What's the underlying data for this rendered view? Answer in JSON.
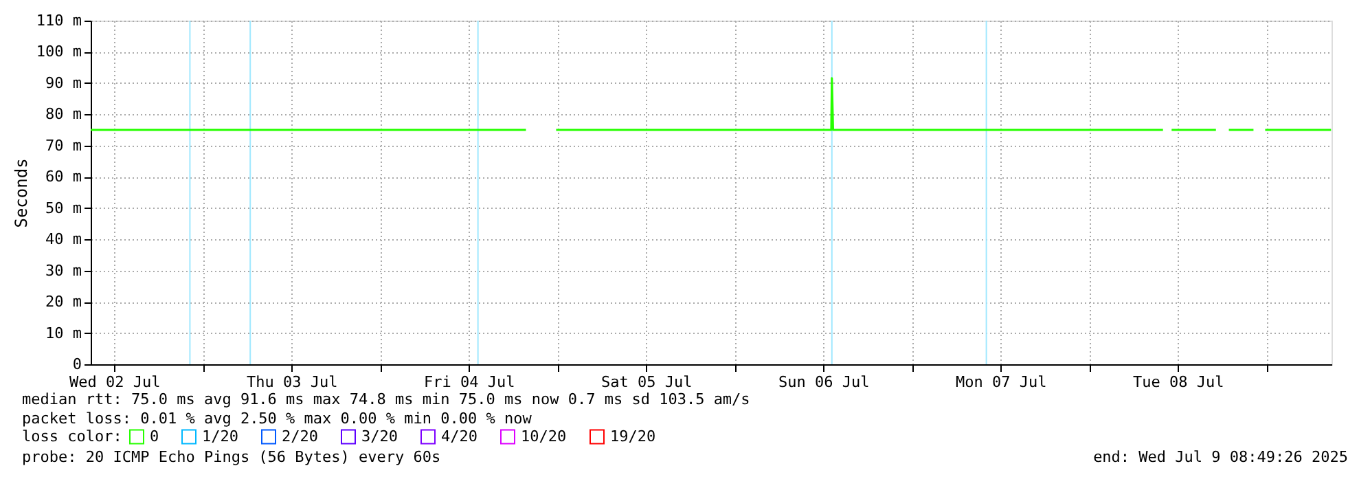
{
  "chart_data": {
    "type": "line",
    "ylabel": "Seconds",
    "legend_title": "loss color:",
    "legend": "bottom",
    "grid": true,
    "xlim": [
      "2025-07-02T08:49",
      "2025-07-09T08:49"
    ],
    "xticks": [
      {
        "value": "2025-07-02T12:00",
        "label": "Wed 02 Jul"
      },
      {
        "value": "2025-07-03T00:00",
        "label": null
      },
      {
        "value": "2025-07-03T12:00",
        "label": "Thu 03 Jul"
      },
      {
        "value": "2025-07-04T00:00",
        "label": null
      },
      {
        "value": "2025-07-04T12:00",
        "label": "Fri 04 Jul"
      },
      {
        "value": "2025-07-05T00:00",
        "label": null
      },
      {
        "value": "2025-07-05T12:00",
        "label": "Sat 05 Jul"
      },
      {
        "value": "2025-07-06T00:00",
        "label": null
      },
      {
        "value": "2025-07-06T12:00",
        "label": "Sun 06 Jul"
      },
      {
        "value": "2025-07-07T00:00",
        "label": null
      },
      {
        "value": "2025-07-07T12:00",
        "label": "Mon 07 Jul"
      },
      {
        "value": "2025-07-08T00:00",
        "label": null
      },
      {
        "value": "2025-07-08T12:00",
        "label": "Tue 08 Jul"
      },
      {
        "value": "2025-07-09T00:00",
        "label": null
      }
    ],
    "ylim": [
      0,
      110
    ],
    "yticks": [
      0,
      {
        "value": 10,
        "label": "10 m"
      },
      {
        "value": 20,
        "label": "20 m"
      },
      {
        "value": 30,
        "label": "30 m"
      },
      {
        "value": 40,
        "label": "40 m"
      },
      {
        "value": 50,
        "label": "50 m"
      },
      {
        "value": 60,
        "label": "60 m"
      },
      {
        "value": 70,
        "label": "70 m"
      },
      {
        "value": 80,
        "label": "80 m"
      },
      {
        "value": 90,
        "label": "90 m"
      },
      {
        "value": 100,
        "label": "100 m"
      },
      {
        "value": 110,
        "label": "110 m"
      }
    ],
    "series": [
      {
        "name": "0",
        "color": "#26ff00",
        "x": [
          "2025-07-02T08:50",
          "2025-07-02T12:00",
          "2025-07-02T15:00",
          "2025-07-02T18:00",
          "2025-07-02T21:00",
          "2025-07-03T00:00",
          "2025-07-03T03:00",
          "2025-07-03T06:00",
          "2025-07-03T09:00",
          "2025-07-03T12:00",
          "2025-07-03T15:00",
          "2025-07-03T18:00",
          "2025-07-03T21:00",
          "2025-07-04T00:00",
          "2025-07-04T03:00",
          "2025-07-04T06:00",
          "2025-07-04T09:00",
          "2025-07-04T12:00",
          "2025-07-04T15:00",
          "2025-07-04T18:00",
          "2025-07-04T19:45",
          "2025-07-04T19:50",
          "2025-07-04T23:50",
          "2025-07-05T03:00",
          "2025-07-05T06:00",
          "2025-07-05T09:00",
          "2025-07-05T12:00",
          "2025-07-05T15:00",
          "2025-07-05T18:00",
          "2025-07-05T21:00",
          "2025-07-06T00:00",
          "2025-07-06T03:00",
          "2025-07-06T06:00",
          "2025-07-06T09:00",
          "2025-07-06T12:00",
          "2025-07-06T13:05",
          "2025-07-06T13:10",
          "2025-07-06T13:20",
          "2025-07-06T15:00",
          "2025-07-06T18:00",
          "2025-07-06T21:00",
          "2025-07-07T00:00",
          "2025-07-07T03:00",
          "2025-07-07T06:00",
          "2025-07-07T09:00",
          "2025-07-07T12:00",
          "2025-07-07T15:00",
          "2025-07-07T18:00",
          "2025-07-07T21:00",
          "2025-07-08T00:00",
          "2025-07-08T03:00",
          "2025-07-08T06:00",
          "2025-07-08T09:00",
          "2025-07-08T10:00",
          "2025-07-08T10:10",
          "2025-07-08T11:10",
          "2025-07-08T14:00",
          "2025-07-08T17:10",
          "2025-07-08T17:20",
          "2025-07-08T18:55",
          "2025-07-08T21:00",
          "2025-07-08T22:15",
          "2025-07-08T22:20",
          "2025-07-08T23:50",
          "2025-07-09T03:00",
          "2025-07-09T06:00",
          "2025-07-09T08:45"
        ],
        "values": [
          75,
          75,
          75,
          75,
          75,
          75,
          75,
          75,
          75,
          75,
          75,
          75,
          75,
          75,
          75,
          75,
          75,
          75,
          75,
          75,
          75,
          null,
          75,
          75,
          75,
          75,
          75,
          75,
          75,
          75,
          75,
          75,
          75,
          75,
          75,
          75,
          91.6,
          75,
          75,
          75,
          75,
          75,
          75,
          75,
          75,
          75,
          75,
          75,
          75,
          75,
          75,
          75,
          75,
          75,
          null,
          75,
          75,
          75,
          null,
          75,
          75,
          75,
          null,
          75,
          75,
          75,
          75
        ]
      },
      {
        "name": "1/20",
        "color": "#00b8ff"
      },
      {
        "name": "2/20",
        "color": "#0059ff"
      },
      {
        "name": "3/20",
        "color": "#5e00ff"
      },
      {
        "name": "4/20",
        "color": "#7e00ff"
      },
      {
        "name": "10/20",
        "color": "#dd00ff"
      },
      {
        "name": "19/20",
        "color": "#ff0000"
      }
    ],
    "ref_lines": [
      {
        "axis": "x",
        "value": "2025-07-02T22:15",
        "color": "#a0e8ff"
      },
      {
        "axis": "x",
        "value": "2025-07-03T06:25",
        "color": "#a0e8ff"
      },
      {
        "axis": "x",
        "value": "2025-07-04T13:15",
        "color": "#a0e8ff"
      },
      {
        "axis": "x",
        "value": "2025-07-06T13:10",
        "color": "#a0e8ff"
      },
      {
        "axis": "x",
        "value": "2025-07-07T10:05",
        "color": "#a0e8ff"
      }
    ],
    "annotations": [
      "median rtt:  75.0 ms avg  91.6 ms max  74.8 ms min  75.0 ms now  0.7 ms sd  103.5   am/s",
      "packet loss: 0.01 % avg  2.50 % max  0.00 % min  0.00 % now",
      "probe:       20 ICMP Echo Pings (56 Bytes) every 60s",
      "end: Wed Jul  9 08:49:26 2025"
    ]
  }
}
